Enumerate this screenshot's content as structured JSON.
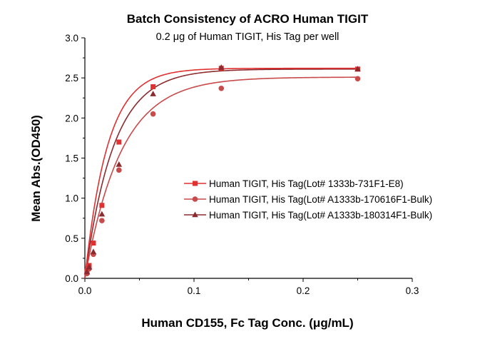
{
  "chart_data": {
    "type": "scatter",
    "title": "Batch Consistency of ACRO Human TIGIT",
    "subtitle": "0.2 μg of Human TIGIT, His Tag per well",
    "xlabel": "Human CD155, Fc Tag Conc. (μg/mL)",
    "ylabel": "Mean Abs.(OD450)",
    "xlim": [
      0,
      0.3
    ],
    "ylim": [
      0,
      3.0
    ],
    "x_ticks": [
      0,
      0.1,
      0.2,
      0.3
    ],
    "x_tick_labels": [
      "0.0",
      "0.1",
      "0.2",
      "0.3"
    ],
    "y_ticks": [
      0,
      0.5,
      1.0,
      1.5,
      2.0,
      2.5,
      3.0
    ],
    "y_tick_labels": [
      "0.0",
      "0.5",
      "1.0",
      "1.5",
      "2.0",
      "2.5",
      "3.0"
    ],
    "grid": false,
    "legend_position": "center-right",
    "x": [
      0.00195,
      0.0039,
      0.0078,
      0.0156,
      0.03125,
      0.0625,
      0.125,
      0.25
    ],
    "series": [
      {
        "name": "Human TIGIT, His Tag(Lot# 1333b-731F1-E8)",
        "marker": "square",
        "color": "#e03030",
        "values": [
          0.09,
          0.16,
          0.44,
          0.91,
          1.7,
          2.39,
          2.62,
          2.61
        ],
        "fit": {
          "top": 2.62,
          "k": 48
        }
      },
      {
        "name": "Human TIGIT, His Tag(Lot# A1333b-170616F1-Bulk)",
        "marker": "circle",
        "color": "#c94a4a",
        "values": [
          0.06,
          0.12,
          0.3,
          0.72,
          1.35,
          2.05,
          2.37,
          2.49
        ],
        "fit": {
          "top": 2.51,
          "k": 30
        }
      },
      {
        "name": "Human TIGIT, His Tag(Lot# A1333b-180314F1-Bulk)",
        "marker": "triangle",
        "color": "#8b2b2f",
        "values": [
          0.08,
          0.14,
          0.33,
          0.8,
          1.42,
          2.3,
          2.63,
          2.61
        ],
        "fit": {
          "top": 2.61,
          "k": 38
        }
      }
    ]
  }
}
